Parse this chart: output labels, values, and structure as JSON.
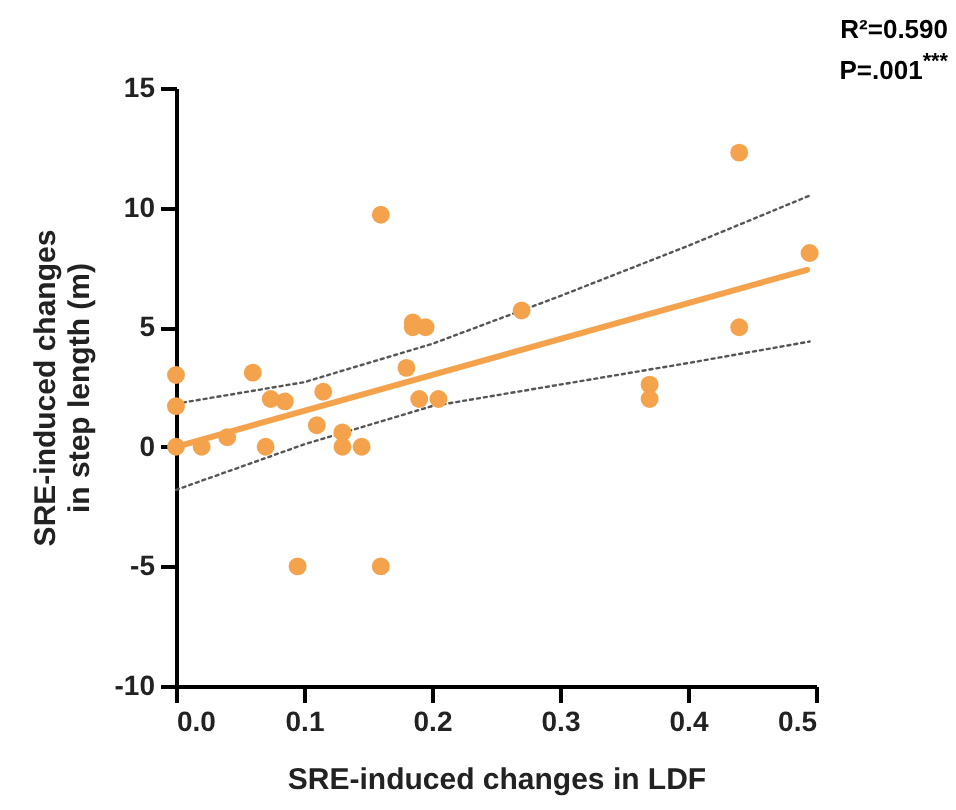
{
  "chart_data": {
    "type": "scatter",
    "xlabel": "SRE-induced changes in LDF",
    "ylabel": "SRE-induced changes in step length (m)",
    "annotations": [
      "R²=0.590",
      "P=.001$^{***}$"
    ],
    "xlim": [
      0,
      0.5
    ],
    "xticks": [
      {
        "value": 0,
        "label": "0.0"
      },
      0.1,
      0.2,
      0.3,
      0.4,
      0.5
    ],
    "ylim": [
      -10,
      15
    ],
    "yticks": [
      -10,
      -5,
      0,
      5,
      10,
      15
    ],
    "grid": false,
    "series": [
      {
        "color": "#f4a24c",
        "marker": "circle",
        "x": [
          0,
          0,
          0,
          0.02,
          0.04,
          0.06,
          0.07,
          0.074,
          0.085,
          0.095,
          0.11,
          0.115,
          0.13,
          0.13,
          0.145,
          0.16,
          0.16,
          0.18,
          0.185,
          0.185,
          0.195,
          0.19,
          0.205,
          0.27,
          0.37,
          0.37,
          0.44,
          0.44,
          0.495
        ],
        "values": [
          3.0,
          1.7,
          0,
          0,
          0.4,
          3.1,
          0,
          2.0,
          1.9,
          -5,
          0.9,
          2.3,
          0.6,
          0,
          0,
          9.7,
          -5,
          3.3,
          5.2,
          5.0,
          5.0,
          2.0,
          2.0,
          5.7,
          2.6,
          2.0,
          12.3,
          5.0,
          8.1
        ]
      },
      {
        "type": "line",
        "color": "#f4a24c",
        "line_style": "solid",
        "x": [
          0,
          0.493
        ],
        "values": [
          0,
          7.4
        ]
      },
      {
        "type": "line",
        "color": "#555555",
        "line_style": "dotted",
        "x": [
          0,
          0.1,
          0.2,
          0.3,
          0.4,
          0.495
        ],
        "values": [
          1.8,
          2.7,
          4.3,
          6.3,
          8.4,
          10.5
        ]
      },
      {
        "type": "line",
        "color": "#555555",
        "line_style": "dotted",
        "x": [
          0,
          0.1,
          0.2,
          0.3,
          0.4,
          0.495
        ],
        "values": [
          -1.8,
          0.1,
          1.7,
          2.6,
          3.5,
          4.4
        ]
      }
    ]
  }
}
